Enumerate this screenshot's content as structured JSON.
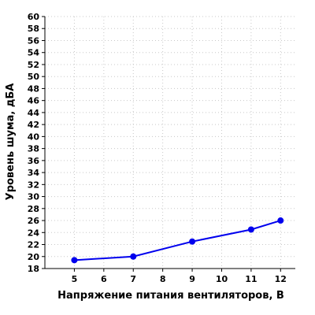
{
  "chart_data": {
    "type": "line",
    "xlabel": "Напряжение питания вентиляторов, В",
    "ylabel": "Уровень шума, дБА",
    "xlim": [
      4,
      12.5
    ],
    "ylim": [
      18,
      60
    ],
    "xticks": [
      5,
      6,
      7,
      8,
      9,
      10,
      11,
      12
    ],
    "yticks": [
      18,
      20,
      22,
      24,
      26,
      28,
      30,
      32,
      34,
      36,
      38,
      40,
      42,
      44,
      46,
      48,
      50,
      52,
      54,
      56,
      58,
      60
    ],
    "grid": true,
    "legend": "none",
    "series": [
      {
        "color": "#0000ee",
        "x": [
          5,
          7,
          9,
          11,
          12
        ],
        "y": [
          19.4,
          20,
          22.5,
          24.5,
          26
        ]
      }
    ]
  }
}
